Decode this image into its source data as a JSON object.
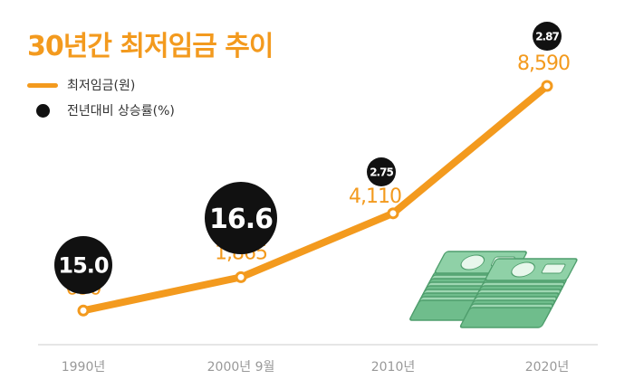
{
  "title": "30년간 최저임금 추이",
  "legend": {
    "line_label": "최저임금(원)",
    "dot_label": "전년대비 상승률(%)"
  },
  "colors": {
    "accent": "#f39a1e",
    "dot": "#111111",
    "axis": "#cccccc",
    "tick_text": "#999999",
    "money_green": "#7cc49a"
  },
  "chart_data": {
    "type": "line",
    "categories": [
      "1990년",
      "2000년 9월",
      "2010년",
      "2020년"
    ],
    "series": [
      {
        "name": "최저임금(원)",
        "values": [
          690,
          1865,
          4110,
          8590
        ]
      },
      {
        "name": "전년대비 상승률(%)",
        "values": [
          15.0,
          16.6,
          2.75,
          2.87
        ]
      }
    ],
    "value_labels": [
      "690",
      "1,865",
      "4,110",
      "8,590"
    ],
    "rate_labels": [
      "15.0",
      "16.6",
      "2.75",
      "2.87"
    ],
    "title": "30년간 최저임금 추이",
    "legend_position": "top-left",
    "grid": false
  },
  "decoration": {
    "icon": "money-stack-icon"
  }
}
